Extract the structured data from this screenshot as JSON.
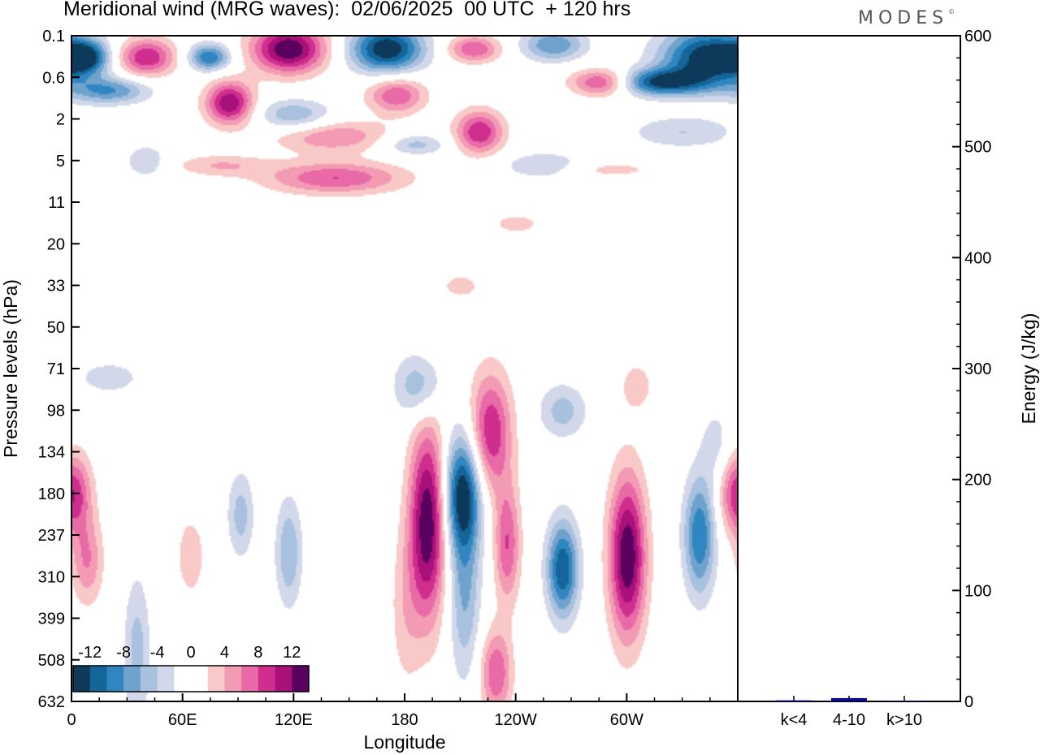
{
  "title": "Meridional wind (MRG waves):  02/06/2025  00 UTC  + 120 hrs",
  "logo": "MODES",
  "colors": {
    "scale": [
      "#0d3a5a",
      "#14669a",
      "#2f86c0",
      "#6fa2cc",
      "#a7c1de",
      "#d2d8ea",
      "#ffffff",
      "#ffffff",
      "#f9c9c8",
      "#f39bb4",
      "#e86aa6",
      "#d02e8e",
      "#a8107a",
      "#5a005e"
    ],
    "bar": "#0a0a8c"
  },
  "chart_data": [
    {
      "type": "heatmap",
      "xlabel": "Longitude",
      "ylabel": "Pressure levels (hPa)",
      "x_ticks": [
        "0",
        "60E",
        "120E",
        "180",
        "120W",
        "60W"
      ],
      "y_ticks": [
        "0.1",
        "0.6",
        "2",
        "5",
        "11",
        "20",
        "33",
        "50",
        "71",
        "98",
        "134",
        "180",
        "237",
        "310",
        "399",
        "508",
        "632"
      ],
      "x_range_deg": [
        0,
        360
      ],
      "colorbar": {
        "labels": [
          "-12",
          "-8",
          "-4",
          "0",
          "4",
          "8",
          "12"
        ],
        "levels": [
          -14,
          -12,
          -10,
          -8,
          -6,
          -4,
          -2,
          0,
          2,
          4,
          6,
          8,
          10,
          12,
          14
        ],
        "placement": "bottom-left"
      },
      "features": [
        {
          "lon": 0,
          "level_index": 11,
          "value": 10,
          "lon_width": 7,
          "levels_height": 1.5
        },
        {
          "lon": 8,
          "level_index": 12.6,
          "value": 6,
          "lon_width": 6,
          "levels_height": 1.6
        },
        {
          "lon": 35,
          "level_index": 14.8,
          "value": -5,
          "lon_width": 5,
          "levels_height": 2.8
        },
        {
          "lon": 64,
          "level_index": 12.5,
          "value": 4,
          "lon_width": 5,
          "levels_height": 1.4
        },
        {
          "lon": 91,
          "level_index": 11.5,
          "value": -5,
          "lon_width": 5,
          "levels_height": 1.6
        },
        {
          "lon": 117,
          "level_index": 12.4,
          "value": -6,
          "lon_width": 5,
          "levels_height": 2
        },
        {
          "lon": 180,
          "level_index": 13.8,
          "value": 3,
          "lon_width": 6,
          "levels_height": 3
        },
        {
          "lon": 192,
          "level_index": 11.7,
          "value": 14,
          "lon_width": 7,
          "levels_height": 3.6
        },
        {
          "lon": 211,
          "level_index": 11,
          "value": -14,
          "lon_width": 7,
          "levels_height": 2.2
        },
        {
          "lon": 212,
          "level_index": 13.5,
          "value": -6,
          "lon_width": 6,
          "levels_height": 3
        },
        {
          "lon": 226,
          "level_index": 9.5,
          "value": 10,
          "lon_width": 8,
          "levels_height": 2.2
        },
        {
          "lon": 235,
          "level_index": 12.2,
          "value": 8,
          "lon_width": 5,
          "levels_height": 2.2
        },
        {
          "lon": 229,
          "level_index": 15.3,
          "value": 8,
          "lon_width": 6,
          "levels_height": 1.6
        },
        {
          "lon": 187,
          "level_index": 8.4,
          "value": -6,
          "lon_width": 9,
          "levels_height": 1.2
        },
        {
          "lon": 265,
          "level_index": 12.8,
          "value": -12,
          "lon_width": 6,
          "levels_height": 1.8
        },
        {
          "lon": 265,
          "level_index": 9,
          "value": -5,
          "lon_width": 9,
          "levels_height": 1
        },
        {
          "lon": 300,
          "level_index": 12.5,
          "value": 14,
          "lon_width": 7,
          "levels_height": 3
        },
        {
          "lon": 305,
          "level_index": 8.4,
          "value": 3,
          "lon_width": 7,
          "levels_height": 1
        },
        {
          "lon": 339,
          "level_index": 12,
          "value": -10,
          "lon_width": 6,
          "levels_height": 2.2
        },
        {
          "lon": 348,
          "level_index": 9.8,
          "value": -3,
          "lon_width": 6,
          "levels_height": 1.4
        },
        {
          "lon": 117,
          "level_index": 0.3,
          "value": 14,
          "lon_width": 14,
          "levels_height": 0.9
        },
        {
          "lon": 170,
          "level_index": 0.3,
          "value": -14,
          "lon_width": 14,
          "levels_height": 0.9
        },
        {
          "lon": 344,
          "level_index": 0.5,
          "value": -14,
          "lon_width": 18,
          "levels_height": 1.1
        },
        {
          "lon": 260,
          "level_index": 0.2,
          "value": -8,
          "lon_width": 12,
          "levels_height": 0.6
        },
        {
          "lon": 40,
          "level_index": 0.5,
          "value": 10,
          "lon_width": 11,
          "levels_height": 0.7
        },
        {
          "lon": 74,
          "level_index": 0.5,
          "value": -10,
          "lon_width": 8,
          "levels_height": 0.5
        },
        {
          "lon": 6,
          "level_index": 0.5,
          "value": -12,
          "lon_width": 9,
          "levels_height": 0.6
        },
        {
          "lon": 217,
          "level_index": 0.3,
          "value": 8,
          "lon_width": 10,
          "levels_height": 0.5
        },
        {
          "lon": 287,
          "level_index": 1.1,
          "value": 10,
          "lon_width": 12,
          "levels_height": 0.5
        },
        {
          "lon": 316,
          "level_index": 1.1,
          "value": -12,
          "lon_width": 18,
          "levels_height": 0.5
        },
        {
          "lon": 20,
          "level_index": 1.3,
          "value": -8,
          "lon_width": 15,
          "levels_height": 0.5
        },
        {
          "lon": 85,
          "level_index": 1.6,
          "value": 12,
          "lon_width": 9,
          "levels_height": 0.8
        },
        {
          "lon": 120,
          "level_index": 1.9,
          "value": -6,
          "lon_width": 14,
          "levels_height": 0.6
        },
        {
          "lon": 175,
          "level_index": 1.4,
          "value": 8,
          "lon_width": 11,
          "levels_height": 0.7
        },
        {
          "lon": 220,
          "level_index": 2.3,
          "value": 10,
          "lon_width": 9,
          "levels_height": 0.8
        },
        {
          "lon": 140,
          "level_index": 2.4,
          "value": 6,
          "lon_width": 22,
          "levels_height": 0.6
        },
        {
          "lon": 185,
          "level_index": 2.6,
          "value": -5,
          "lon_width": 12,
          "levels_height": 0.4
        },
        {
          "lon": 142,
          "level_index": 3.4,
          "value": 8,
          "lon_width": 26,
          "levels_height": 0.6
        },
        {
          "lon": 80,
          "level_index": 3.1,
          "value": 4,
          "lon_width": 18,
          "levels_height": 0.4
        },
        {
          "lon": 255,
          "level_index": 3.1,
          "value": -4,
          "lon_width": 16,
          "levels_height": 0.5
        },
        {
          "lon": 330,
          "level_index": 2.3,
          "value": -4,
          "lon_width": 20,
          "levels_height": 0.6
        },
        {
          "lon": 290,
          "level_index": 3.2,
          "value": 3,
          "lon_width": 18,
          "levels_height": 0.3
        },
        {
          "lon": 40,
          "level_index": 3,
          "value": -4,
          "lon_width": 8,
          "levels_height": 0.6
        },
        {
          "lon": 240,
          "level_index": 4.5,
          "value": 3,
          "lon_width": 10,
          "levels_height": 0.4
        },
        {
          "lon": 20,
          "level_index": 8.2,
          "value": -3,
          "lon_width": 14,
          "levels_height": 0.7
        },
        {
          "lon": 210,
          "level_index": 6,
          "value": 3,
          "lon_width": 8,
          "levels_height": 0.5
        }
      ]
    },
    {
      "type": "bar",
      "categories": [
        "k<4",
        "4-10",
        "k>10"
      ],
      "values": [
        1,
        3,
        0.5
      ],
      "ylabel": "Energy (J/kg)",
      "ylim": [
        0,
        600
      ],
      "y_ticks": [
        "0",
        "100",
        "200",
        "300",
        "400",
        "500",
        "600"
      ]
    }
  ]
}
